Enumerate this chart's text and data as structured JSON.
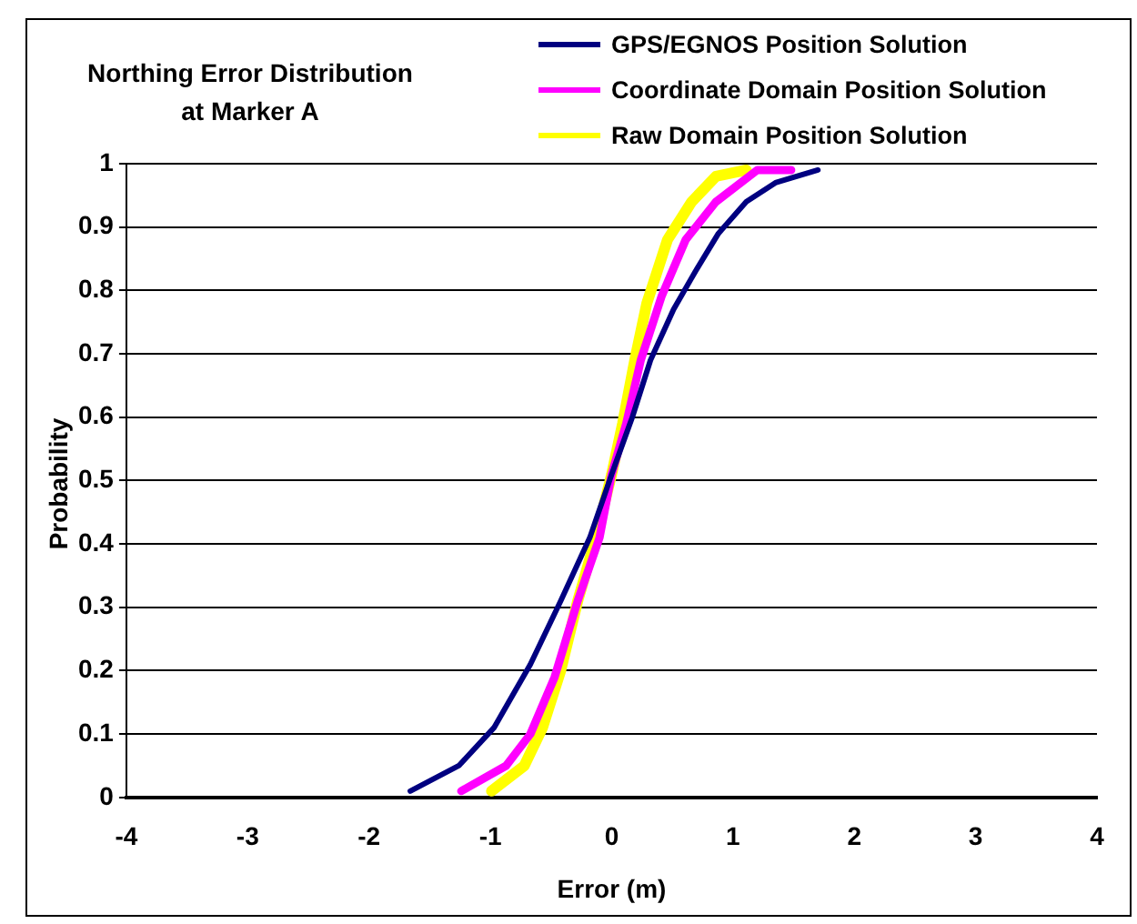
{
  "chart_data": {
    "type": "line",
    "title": "Northing Error Distribution at Marker A",
    "xlabel": "Error (m)",
    "ylabel": "Probability",
    "xlim": [
      -4,
      4
    ],
    "xticks": [
      -4,
      -3,
      -2,
      -1,
      0,
      1,
      2,
      3,
      4
    ],
    "ylim": [
      0,
      1
    ],
    "yticks": [
      0,
      0.1,
      0.2,
      0.3,
      0.4,
      0.5,
      0.6,
      0.7,
      0.8,
      0.9,
      1
    ],
    "grid": "y",
    "legend": "top right",
    "marker": "none",
    "line_style": "solid",
    "series": [
      {
        "name": "GPS/EGNOS Position Solution",
        "color": "#000080",
        "x": [
          -1.66,
          -1.26,
          -0.97,
          -0.67,
          -0.42,
          -0.18,
          0,
          0.17,
          0.32,
          0.51,
          0.69,
          0.88,
          1.11,
          1.35,
          1.7
        ],
        "values": [
          0.01,
          0.05,
          0.11,
          0.21,
          0.31,
          0.41,
          0.51,
          0.6,
          0.69,
          0.77,
          0.83,
          0.89,
          0.94,
          0.97,
          0.99
        ]
      },
      {
        "name": "Coordinate Domain Position Solution",
        "color": "#ff00ff",
        "x": [
          -1.24,
          -0.87,
          -0.67,
          -0.47,
          -0.28,
          -0.1,
          0,
          0.12,
          0.24,
          0.41,
          0.61,
          0.86,
          1.2,
          1.48
        ],
        "values": [
          0.01,
          0.05,
          0.1,
          0.19,
          0.31,
          0.41,
          0.51,
          0.59,
          0.69,
          0.79,
          0.88,
          0.94,
          0.99,
          0.99
        ]
      },
      {
        "name": "Raw Domain Position Solution",
        "color": "#ffff00",
        "x": [
          -0.99,
          -0.72,
          -0.57,
          -0.42,
          -0.28,
          -0.13,
          0,
          0.09,
          0.19,
          0.29,
          0.46,
          0.66,
          0.86,
          1.11
        ],
        "values": [
          0.01,
          0.05,
          0.11,
          0.2,
          0.31,
          0.41,
          0.51,
          0.59,
          0.69,
          0.78,
          0.88,
          0.94,
          0.98,
          0.99
        ]
      }
    ]
  }
}
